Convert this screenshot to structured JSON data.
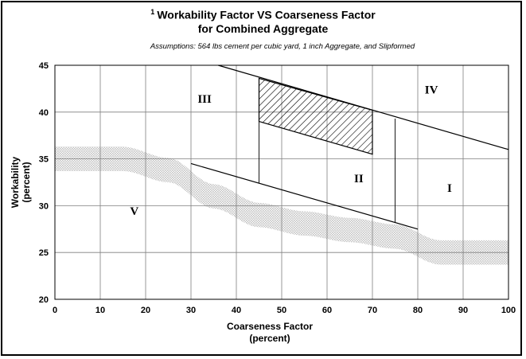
{
  "title": {
    "superscript": "1",
    "line1": "Workability Factor VS Coarseness Factor",
    "line2": "for Combined Aggregate",
    "assumptions": "Assumptions: 564 lbs cement per cubic yard, 1 inch Aggregate,  and Slipformed"
  },
  "chart_data": {
    "type": "line",
    "xlabel": [
      "Coarseness Factor",
      "(percent)"
    ],
    "ylabel": [
      "Workability",
      "(percent)"
    ],
    "xlim": [
      0,
      100
    ],
    "ylim": [
      20,
      45
    ],
    "xticks": [
      "0",
      "10",
      "20",
      "30",
      "40",
      "50",
      "60",
      "70",
      "80",
      "90",
      "100"
    ],
    "yticks": [
      "20",
      "25",
      "30",
      "35",
      "40",
      "45"
    ],
    "grid": true,
    "colors": {
      "line": "#000000",
      "band": "#b0b0b0",
      "grid": "#7f7f7f"
    },
    "lines": [
      {
        "id": "upper-boundary",
        "points": [
          [
            36,
            45
          ],
          [
            100,
            36
          ]
        ]
      },
      {
        "id": "lower-boundary",
        "points": [
          [
            30,
            34.5
          ],
          [
            80,
            27.5
          ]
        ]
      },
      {
        "id": "divider-45",
        "points": [
          [
            45,
            43.6
          ],
          [
            45,
            32.4
          ]
        ]
      },
      {
        "id": "divider-75",
        "points": [
          [
            75,
            39.3
          ],
          [
            75,
            28.2
          ]
        ]
      }
    ],
    "optimal_region": {
      "polygon": [
        [
          45,
          43.6
        ],
        [
          70,
          40.2
        ],
        [
          70,
          35.5
        ],
        [
          45,
          39
        ]
      ],
      "pattern": "hatched"
    },
    "trend_band": {
      "center": [
        [
          0,
          35
        ],
        [
          15,
          35
        ],
        [
          25,
          33.8
        ],
        [
          35,
          31
        ],
        [
          45,
          29
        ],
        [
          55,
          28.1
        ],
        [
          65,
          27.4
        ],
        [
          75,
          26.7
        ],
        [
          85,
          25
        ],
        [
          100,
          25
        ]
      ],
      "half_width": 1.3
    },
    "zones": [
      {
        "label": "I",
        "x": 87,
        "y": 31.5
      },
      {
        "label": "II",
        "x": 67,
        "y": 32.5
      },
      {
        "label": "III",
        "x": 33,
        "y": 41
      },
      {
        "label": "IV",
        "x": 83,
        "y": 42
      },
      {
        "label": "V",
        "x": 17.5,
        "y": 29
      }
    ]
  }
}
